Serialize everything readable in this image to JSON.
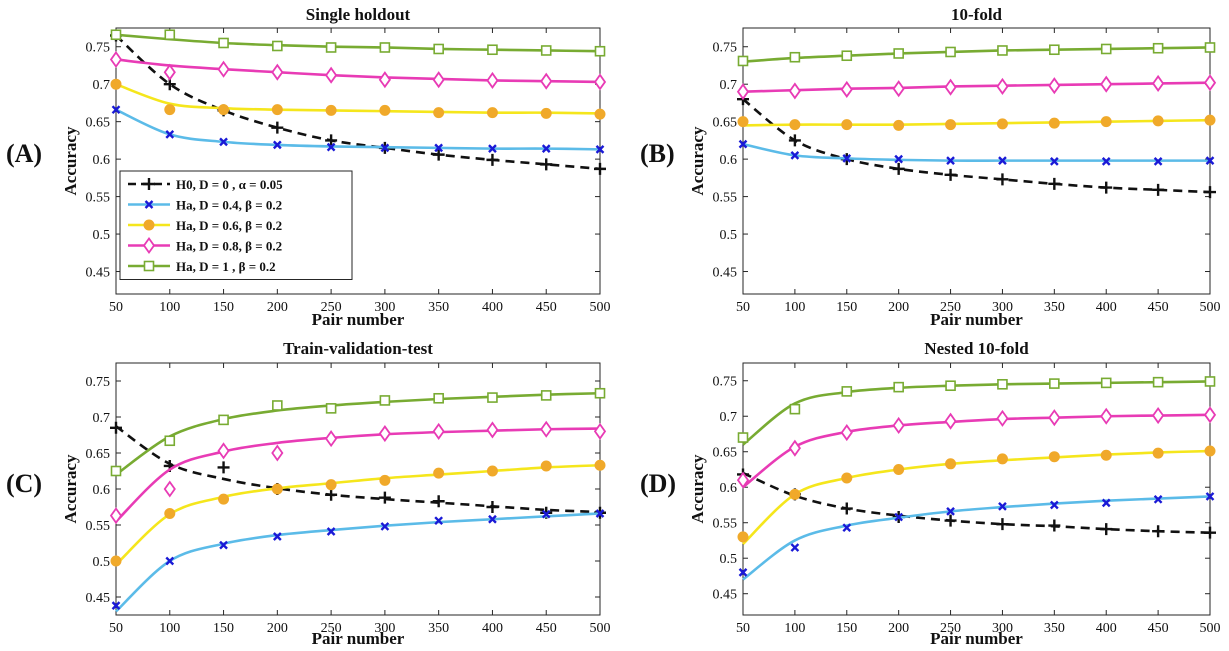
{
  "colors": {
    "H0": "#111111",
    "Ha_D04": "#5bbbe8",
    "Ha_D06": "#f5e61c",
    "Ha_D08": "#e83bb5",
    "Ha_D1": "#78ab32",
    "marker_D04": "#1a1ad6",
    "marker_D06": "#f0a92a",
    "marker_D08": "#e83bb5",
    "marker_D1": "#78ab32"
  },
  "legend": [
    {
      "key": "H0",
      "label": "H0, D = 0   , α = 0.05",
      "marker": "plus"
    },
    {
      "key": "Ha_D04",
      "label": "Ha, D = 0.4, β = 0.2",
      "marker": "x"
    },
    {
      "key": "Ha_D06",
      "label": "Ha, D = 0.6, β = 0.2",
      "marker": "circle"
    },
    {
      "key": "Ha_D08",
      "label": "Ha, D = 0.8, β = 0.2",
      "marker": "diamond"
    },
    {
      "key": "Ha_D1",
      "label": "Ha, D = 1   , β = 0.2",
      "marker": "square"
    }
  ],
  "chart_data": [
    {
      "type": "line",
      "panel_letter": "(A)",
      "title": "Single holdout",
      "xlabel": "Pair number",
      "ylabel": "Accuracy",
      "xlim": [
        50,
        500
      ],
      "ylim": [
        0.42,
        0.775
      ],
      "xticks": [
        50,
        100,
        150,
        200,
        250,
        300,
        350,
        400,
        450,
        500
      ],
      "yticks": [
        0.45,
        0.5,
        0.55,
        0.6,
        0.65,
        0.7,
        0.75
      ],
      "ytick_labels": [
        "0.45",
        "0.5",
        "0.55",
        "0.6",
        "0.65",
        "0.7",
        "0.75"
      ],
      "show_legend": true,
      "legend_position": "bottom-left",
      "series": [
        {
          "key": "H0",
          "x": [
            50,
            100,
            150,
            200,
            250,
            300,
            350,
            400,
            450,
            500
          ],
          "curve": [
            0.765,
            0.7,
            0.665,
            0.642,
            0.625,
            0.615,
            0.606,
            0.599,
            0.593,
            0.587
          ],
          "markers": [
            0.765,
            0.7,
            0.665,
            0.642,
            0.625,
            0.615,
            0.606,
            0.599,
            0.593,
            0.587
          ]
        },
        {
          "key": "Ha_D04",
          "x": [
            50,
            100,
            150,
            200,
            250,
            300,
            350,
            400,
            450,
            500
          ],
          "curve": [
            0.666,
            0.633,
            0.623,
            0.619,
            0.617,
            0.616,
            0.615,
            0.614,
            0.614,
            0.613
          ],
          "markers": [
            0.666,
            0.633,
            0.623,
            0.619,
            0.616,
            0.615,
            0.615,
            0.614,
            0.614,
            0.613
          ]
        },
        {
          "key": "Ha_D06",
          "x": [
            50,
            100,
            150,
            200,
            250,
            300,
            350,
            400,
            450,
            500
          ],
          "curve": [
            0.7,
            0.674,
            0.668,
            0.666,
            0.665,
            0.664,
            0.663,
            0.662,
            0.662,
            0.661
          ],
          "markers": [
            0.7,
            0.666,
            0.666,
            0.666,
            0.665,
            0.665,
            0.662,
            0.662,
            0.661,
            0.66
          ]
        },
        {
          "key": "Ha_D08",
          "x": [
            50,
            100,
            150,
            200,
            250,
            300,
            350,
            400,
            450,
            500
          ],
          "curve": [
            0.733,
            0.725,
            0.72,
            0.716,
            0.712,
            0.709,
            0.707,
            0.705,
            0.704,
            0.703
          ],
          "markers": [
            0.733,
            0.716,
            0.72,
            0.716,
            0.712,
            0.706,
            0.706,
            0.705,
            0.704,
            0.703
          ]
        },
        {
          "key": "Ha_D1",
          "x": [
            50,
            100,
            150,
            200,
            250,
            300,
            350,
            400,
            450,
            500
          ],
          "curve": [
            0.766,
            0.76,
            0.755,
            0.752,
            0.75,
            0.749,
            0.747,
            0.746,
            0.745,
            0.744
          ],
          "markers": [
            0.766,
            0.766,
            0.755,
            0.751,
            0.749,
            0.749,
            0.747,
            0.746,
            0.745,
            0.744
          ]
        }
      ]
    },
    {
      "type": "line",
      "panel_letter": "(B)",
      "title": "10-fold",
      "xlabel": "Pair number",
      "ylabel": "Accuracy",
      "xlim": [
        50,
        500
      ],
      "ylim": [
        0.42,
        0.775
      ],
      "xticks": [
        50,
        100,
        150,
        200,
        250,
        300,
        350,
        400,
        450,
        500
      ],
      "yticks": [
        0.45,
        0.5,
        0.55,
        0.6,
        0.65,
        0.7,
        0.75
      ],
      "ytick_labels": [
        "0.45",
        "0.5",
        "0.55",
        "0.6",
        "0.65",
        "0.7",
        "0.75"
      ],
      "show_legend": false,
      "series": [
        {
          "key": "H0",
          "x": [
            50,
            100,
            150,
            200,
            250,
            300,
            350,
            400,
            450,
            500
          ],
          "curve": [
            0.68,
            0.625,
            0.6,
            0.587,
            0.579,
            0.573,
            0.567,
            0.562,
            0.559,
            0.556
          ],
          "markers": [
            0.68,
            0.625,
            0.6,
            0.587,
            0.579,
            0.573,
            0.567,
            0.562,
            0.559,
            0.556
          ]
        },
        {
          "key": "Ha_D04",
          "x": [
            50,
            100,
            150,
            200,
            250,
            300,
            350,
            400,
            450,
            500
          ],
          "curve": [
            0.62,
            0.605,
            0.601,
            0.599,
            0.598,
            0.598,
            0.598,
            0.598,
            0.598,
            0.598
          ],
          "markers": [
            0.62,
            0.605,
            0.601,
            0.6,
            0.598,
            0.598,
            0.597,
            0.597,
            0.597,
            0.598
          ]
        },
        {
          "key": "Ha_D06",
          "x": [
            50,
            100,
            150,
            200,
            250,
            300,
            350,
            400,
            450,
            500
          ],
          "curve": [
            0.645,
            0.646,
            0.646,
            0.646,
            0.647,
            0.648,
            0.649,
            0.65,
            0.651,
            0.652
          ],
          "markers": [
            0.65,
            0.646,
            0.646,
            0.645,
            0.646,
            0.647,
            0.648,
            0.65,
            0.651,
            0.652
          ]
        },
        {
          "key": "Ha_D08",
          "x": [
            50,
            100,
            150,
            200,
            250,
            300,
            350,
            400,
            450,
            500
          ],
          "curve": [
            0.69,
            0.692,
            0.694,
            0.695,
            0.697,
            0.698,
            0.699,
            0.7,
            0.701,
            0.702
          ],
          "markers": [
            0.69,
            0.691,
            0.693,
            0.694,
            0.696,
            0.697,
            0.698,
            0.7,
            0.701,
            0.702
          ]
        },
        {
          "key": "Ha_D1",
          "x": [
            50,
            100,
            150,
            200,
            250,
            300,
            350,
            400,
            450,
            500
          ],
          "curve": [
            0.73,
            0.735,
            0.738,
            0.741,
            0.743,
            0.745,
            0.746,
            0.747,
            0.748,
            0.749
          ],
          "markers": [
            0.731,
            0.736,
            0.738,
            0.741,
            0.743,
            0.745,
            0.746,
            0.747,
            0.748,
            0.749
          ]
        }
      ]
    },
    {
      "type": "line",
      "panel_letter": "(C)",
      "title": "Train-validation-test",
      "xlabel": "Pair number",
      "ylabel": "Accuracy",
      "xlim": [
        50,
        500
      ],
      "ylim": [
        0.425,
        0.775
      ],
      "xticks": [
        50,
        100,
        150,
        200,
        250,
        300,
        350,
        400,
        450,
        500
      ],
      "yticks": [
        0.45,
        0.5,
        0.55,
        0.6,
        0.65,
        0.7,
        0.75
      ],
      "ytick_labels": [
        "0.45",
        "0.5",
        "0.55",
        "0.6",
        "0.65",
        "0.7",
        "0.75"
      ],
      "show_legend": false,
      "series": [
        {
          "key": "H0",
          "x": [
            50,
            100,
            150,
            200,
            250,
            300,
            350,
            400,
            450,
            500
          ],
          "curve": [
            0.687,
            0.635,
            0.614,
            0.601,
            0.592,
            0.586,
            0.581,
            0.576,
            0.571,
            0.568
          ],
          "markers": [
            0.685,
            0.632,
            0.63,
            0.6,
            0.592,
            0.588,
            0.583,
            0.575,
            0.567,
            0.567
          ]
        },
        {
          "key": "Ha_D04",
          "x": [
            50,
            100,
            150,
            200,
            250,
            300,
            350,
            400,
            450,
            500
          ],
          "curve": [
            0.43,
            0.5,
            0.524,
            0.536,
            0.543,
            0.549,
            0.554,
            0.558,
            0.562,
            0.566
          ],
          "markers": [
            0.438,
            0.5,
            0.522,
            0.534,
            0.541,
            0.548,
            0.556,
            0.558,
            0.565,
            0.566
          ]
        },
        {
          "key": "Ha_D06",
          "x": [
            50,
            100,
            150,
            200,
            250,
            300,
            350,
            400,
            450,
            500
          ],
          "curve": [
            0.495,
            0.565,
            0.589,
            0.601,
            0.608,
            0.615,
            0.62,
            0.625,
            0.63,
            0.633
          ],
          "markers": [
            0.5,
            0.566,
            0.586,
            0.6,
            0.606,
            0.612,
            0.622,
            0.625,
            0.632,
            0.633
          ]
        },
        {
          "key": "Ha_D08",
          "x": [
            50,
            100,
            150,
            200,
            250,
            300,
            350,
            400,
            450,
            500
          ],
          "curve": [
            0.555,
            0.627,
            0.652,
            0.664,
            0.671,
            0.676,
            0.679,
            0.681,
            0.683,
            0.684
          ],
          "markers": [
            0.563,
            0.6,
            0.653,
            0.65,
            0.67,
            0.677,
            0.68,
            0.682,
            0.683,
            0.68
          ]
        },
        {
          "key": "Ha_D1",
          "x": [
            50,
            100,
            150,
            200,
            250,
            300,
            350,
            400,
            450,
            500
          ],
          "curve": [
            0.62,
            0.673,
            0.697,
            0.709,
            0.716,
            0.721,
            0.725,
            0.728,
            0.731,
            0.733
          ],
          "markers": [
            0.625,
            0.667,
            0.696,
            0.716,
            0.712,
            0.723,
            0.726,
            0.727,
            0.73,
            0.733
          ]
        }
      ]
    },
    {
      "type": "line",
      "panel_letter": "(D)",
      "title": "Nested 10-fold",
      "xlabel": "Pair number",
      "ylabel": "Accuracy",
      "xlim": [
        50,
        500
      ],
      "ylim": [
        0.42,
        0.775
      ],
      "xticks": [
        50,
        100,
        150,
        200,
        250,
        300,
        350,
        400,
        450,
        500
      ],
      "yticks": [
        0.45,
        0.5,
        0.55,
        0.6,
        0.65,
        0.7,
        0.75
      ],
      "ytick_labels": [
        "0.45",
        "0.5",
        "0.55",
        "0.6",
        "0.65",
        "0.7",
        "0.75"
      ],
      "show_legend": false,
      "series": [
        {
          "key": "H0",
          "x": [
            50,
            100,
            150,
            200,
            250,
            300,
            350,
            400,
            450,
            500
          ],
          "curve": [
            0.62,
            0.588,
            0.57,
            0.56,
            0.553,
            0.548,
            0.545,
            0.541,
            0.538,
            0.536
          ],
          "markers": [
            0.618,
            0.59,
            0.57,
            0.558,
            0.553,
            0.548,
            0.546,
            0.541,
            0.538,
            0.536
          ]
        },
        {
          "key": "Ha_D04",
          "x": [
            50,
            100,
            150,
            200,
            250,
            300,
            350,
            400,
            450,
            500
          ],
          "curve": [
            0.47,
            0.525,
            0.546,
            0.557,
            0.566,
            0.572,
            0.577,
            0.581,
            0.584,
            0.587
          ],
          "markers": [
            0.48,
            0.515,
            0.543,
            0.558,
            0.566,
            0.573,
            0.575,
            0.578,
            0.583,
            0.587
          ]
        },
        {
          "key": "Ha_D06",
          "x": [
            50,
            100,
            150,
            200,
            250,
            300,
            350,
            400,
            450,
            500
          ],
          "curve": [
            0.52,
            0.59,
            0.613,
            0.625,
            0.633,
            0.638,
            0.642,
            0.646,
            0.649,
            0.651
          ],
          "markers": [
            0.53,
            0.59,
            0.613,
            0.625,
            0.633,
            0.64,
            0.643,
            0.645,
            0.648,
            0.651
          ]
        },
        {
          "key": "Ha_D08",
          "x": [
            50,
            100,
            150,
            200,
            250,
            300,
            350,
            400,
            450,
            500
          ],
          "curve": [
            0.6,
            0.657,
            0.678,
            0.687,
            0.692,
            0.696,
            0.698,
            0.7,
            0.701,
            0.702
          ],
          "markers": [
            0.61,
            0.655,
            0.677,
            0.687,
            0.693,
            0.697,
            0.698,
            0.7,
            0.701,
            0.702
          ]
        },
        {
          "key": "Ha_D1",
          "x": [
            50,
            100,
            150,
            200,
            250,
            300,
            350,
            400,
            450,
            500
          ],
          "curve": [
            0.66,
            0.718,
            0.734,
            0.74,
            0.743,
            0.745,
            0.746,
            0.747,
            0.748,
            0.749
          ],
          "markers": [
            0.67,
            0.71,
            0.735,
            0.741,
            0.743,
            0.745,
            0.746,
            0.747,
            0.748,
            0.749
          ]
        }
      ]
    }
  ]
}
